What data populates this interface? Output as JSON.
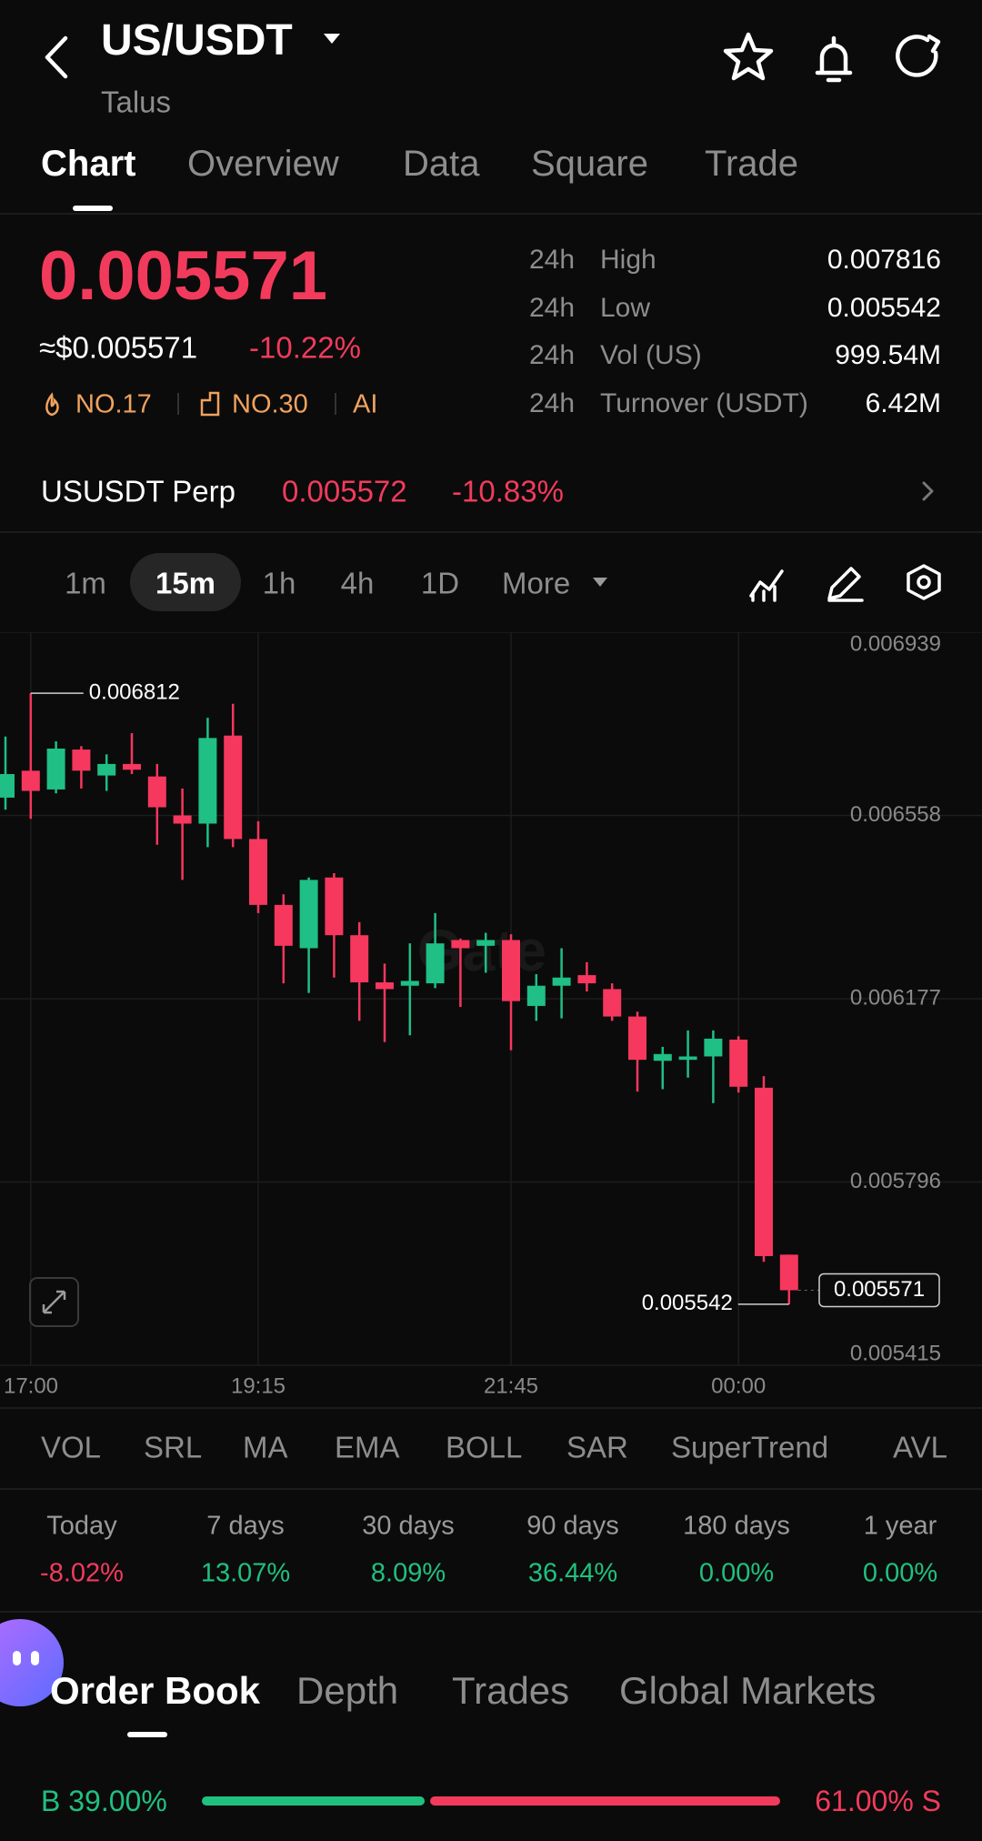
{
  "header": {
    "title": "US/USDT",
    "subtitle": "Talus"
  },
  "tabs": [
    "Chart",
    "Overview",
    "Data",
    "Square",
    "Trade"
  ],
  "ticker": {
    "price": "0.005571",
    "usd_price": "≈$0.005571",
    "change": "-10.22%",
    "rank_hot": "NO.17",
    "rank_cap": "NO.30",
    "ai": "AI",
    "stats": [
      {
        "period": "24h",
        "label": "High",
        "value": "0.007816"
      },
      {
        "period": "24h",
        "label": "Low",
        "value": "0.005542"
      },
      {
        "period": "24h",
        "label": "Vol (US)",
        "value": "999.54M"
      },
      {
        "period": "24h",
        "label": "Turnover (USDT)",
        "value": "6.42M"
      }
    ]
  },
  "perp": {
    "name": "USUSDT Perp",
    "price": "0.005572",
    "change": "-10.83%"
  },
  "intervals": [
    "1m",
    "15m",
    "1h",
    "4h",
    "1D",
    "More"
  ],
  "chart": {
    "type": "candlestick",
    "categories": [
      null,
      "17:00",
      null,
      null,
      null,
      null,
      null,
      null,
      null,
      null,
      "19:15",
      null,
      null,
      null,
      null,
      null,
      null,
      null,
      null,
      null,
      "21:45",
      null,
      null,
      null,
      null,
      null,
      null,
      null,
      null,
      "00:00",
      null,
      null
    ],
    "open": [
      0.006595,
      0.006651,
      0.006612,
      0.006695,
      0.006641,
      0.006665,
      0.006639,
      0.006558,
      0.006541,
      0.006724,
      0.006509,
      0.006372,
      0.006282,
      0.006429,
      0.006309,
      0.006211,
      0.006204,
      0.006209,
      0.006299,
      0.006287,
      0.006299,
      0.006162,
      0.006204,
      0.006226,
      0.006197,
      0.00614,
      0.006048,
      0.00605,
      0.006057,
      0.006092,
      0.005992,
      0.005645
    ],
    "high": [
      0.006722,
      0.006812,
      0.006712,
      0.006702,
      0.006685,
      0.006729,
      0.006665,
      0.006614,
      0.006761,
      0.00679,
      0.006546,
      0.006394,
      0.006429,
      0.006438,
      0.006336,
      0.00625,
      0.006292,
      0.006355,
      0.006302,
      0.006314,
      0.006311,
      0.006228,
      0.006282,
      0.006253,
      0.006209,
      0.00615,
      0.006077,
      0.006111,
      0.006111,
      0.006099,
      0.006016,
      0.005645
    ],
    "low": [
      0.00657,
      0.006551,
      0.006604,
      0.006614,
      0.006609,
      0.006644,
      0.006497,
      0.006424,
      0.006492,
      0.006492,
      0.006355,
      0.006209,
      0.006189,
      0.006221,
      0.006131,
      0.006087,
      0.006101,
      0.006199,
      0.00616,
      0.006231,
      0.00607,
      0.006131,
      0.006136,
      0.006192,
      0.006131,
      0.005984,
      0.005989,
      0.006013,
      0.00596,
      0.005982,
      0.00563,
      0.005542
    ],
    "close": [
      0.006644,
      0.006609,
      0.006697,
      0.006651,
      0.006665,
      0.006653,
      0.006575,
      0.006541,
      0.006719,
      0.006509,
      0.006372,
      0.006287,
      0.006424,
      0.006309,
      0.006211,
      0.006197,
      0.006214,
      0.006292,
      0.006282,
      0.006299,
      0.006172,
      0.006204,
      0.006221,
      0.006209,
      0.00614,
      0.00605,
      0.006062,
      0.006057,
      0.006094,
      0.005994,
      0.005642,
      0.005571
    ],
    "up_color": "#1fbf85",
    "down_color": "#f6375e",
    "ylim": [
      0.005415,
      0.006939
    ],
    "yticks": [
      0.006939,
      0.006558,
      0.006177,
      0.005796,
      0.005415
    ],
    "grid": true,
    "annotations": {
      "high": "0.006812",
      "low": "0.005542",
      "last": "0.005571"
    },
    "watermark": "Gate"
  },
  "indicators": [
    "VOL",
    "SRL",
    "MA",
    "EMA",
    "BOLL",
    "SAR",
    "SuperTrend",
    "AVL"
  ],
  "performance": [
    {
      "label": "Today",
      "value": "-8.02%"
    },
    {
      "label": "7 days",
      "value": "13.07%"
    },
    {
      "label": "30 days",
      "value": "8.09%"
    },
    {
      "label": "90 days",
      "value": "36.44%"
    },
    {
      "label": "180 days",
      "value": "0.00%"
    },
    {
      "label": "1 year",
      "value": "0.00%"
    }
  ],
  "book_tabs": [
    "Order Book",
    "Depth",
    "Trades",
    "Global Markets"
  ],
  "ratio": {
    "buy_label": "B 39.00%",
    "buy": 39,
    "sell_label": "61.00% S",
    "sell": 61
  }
}
